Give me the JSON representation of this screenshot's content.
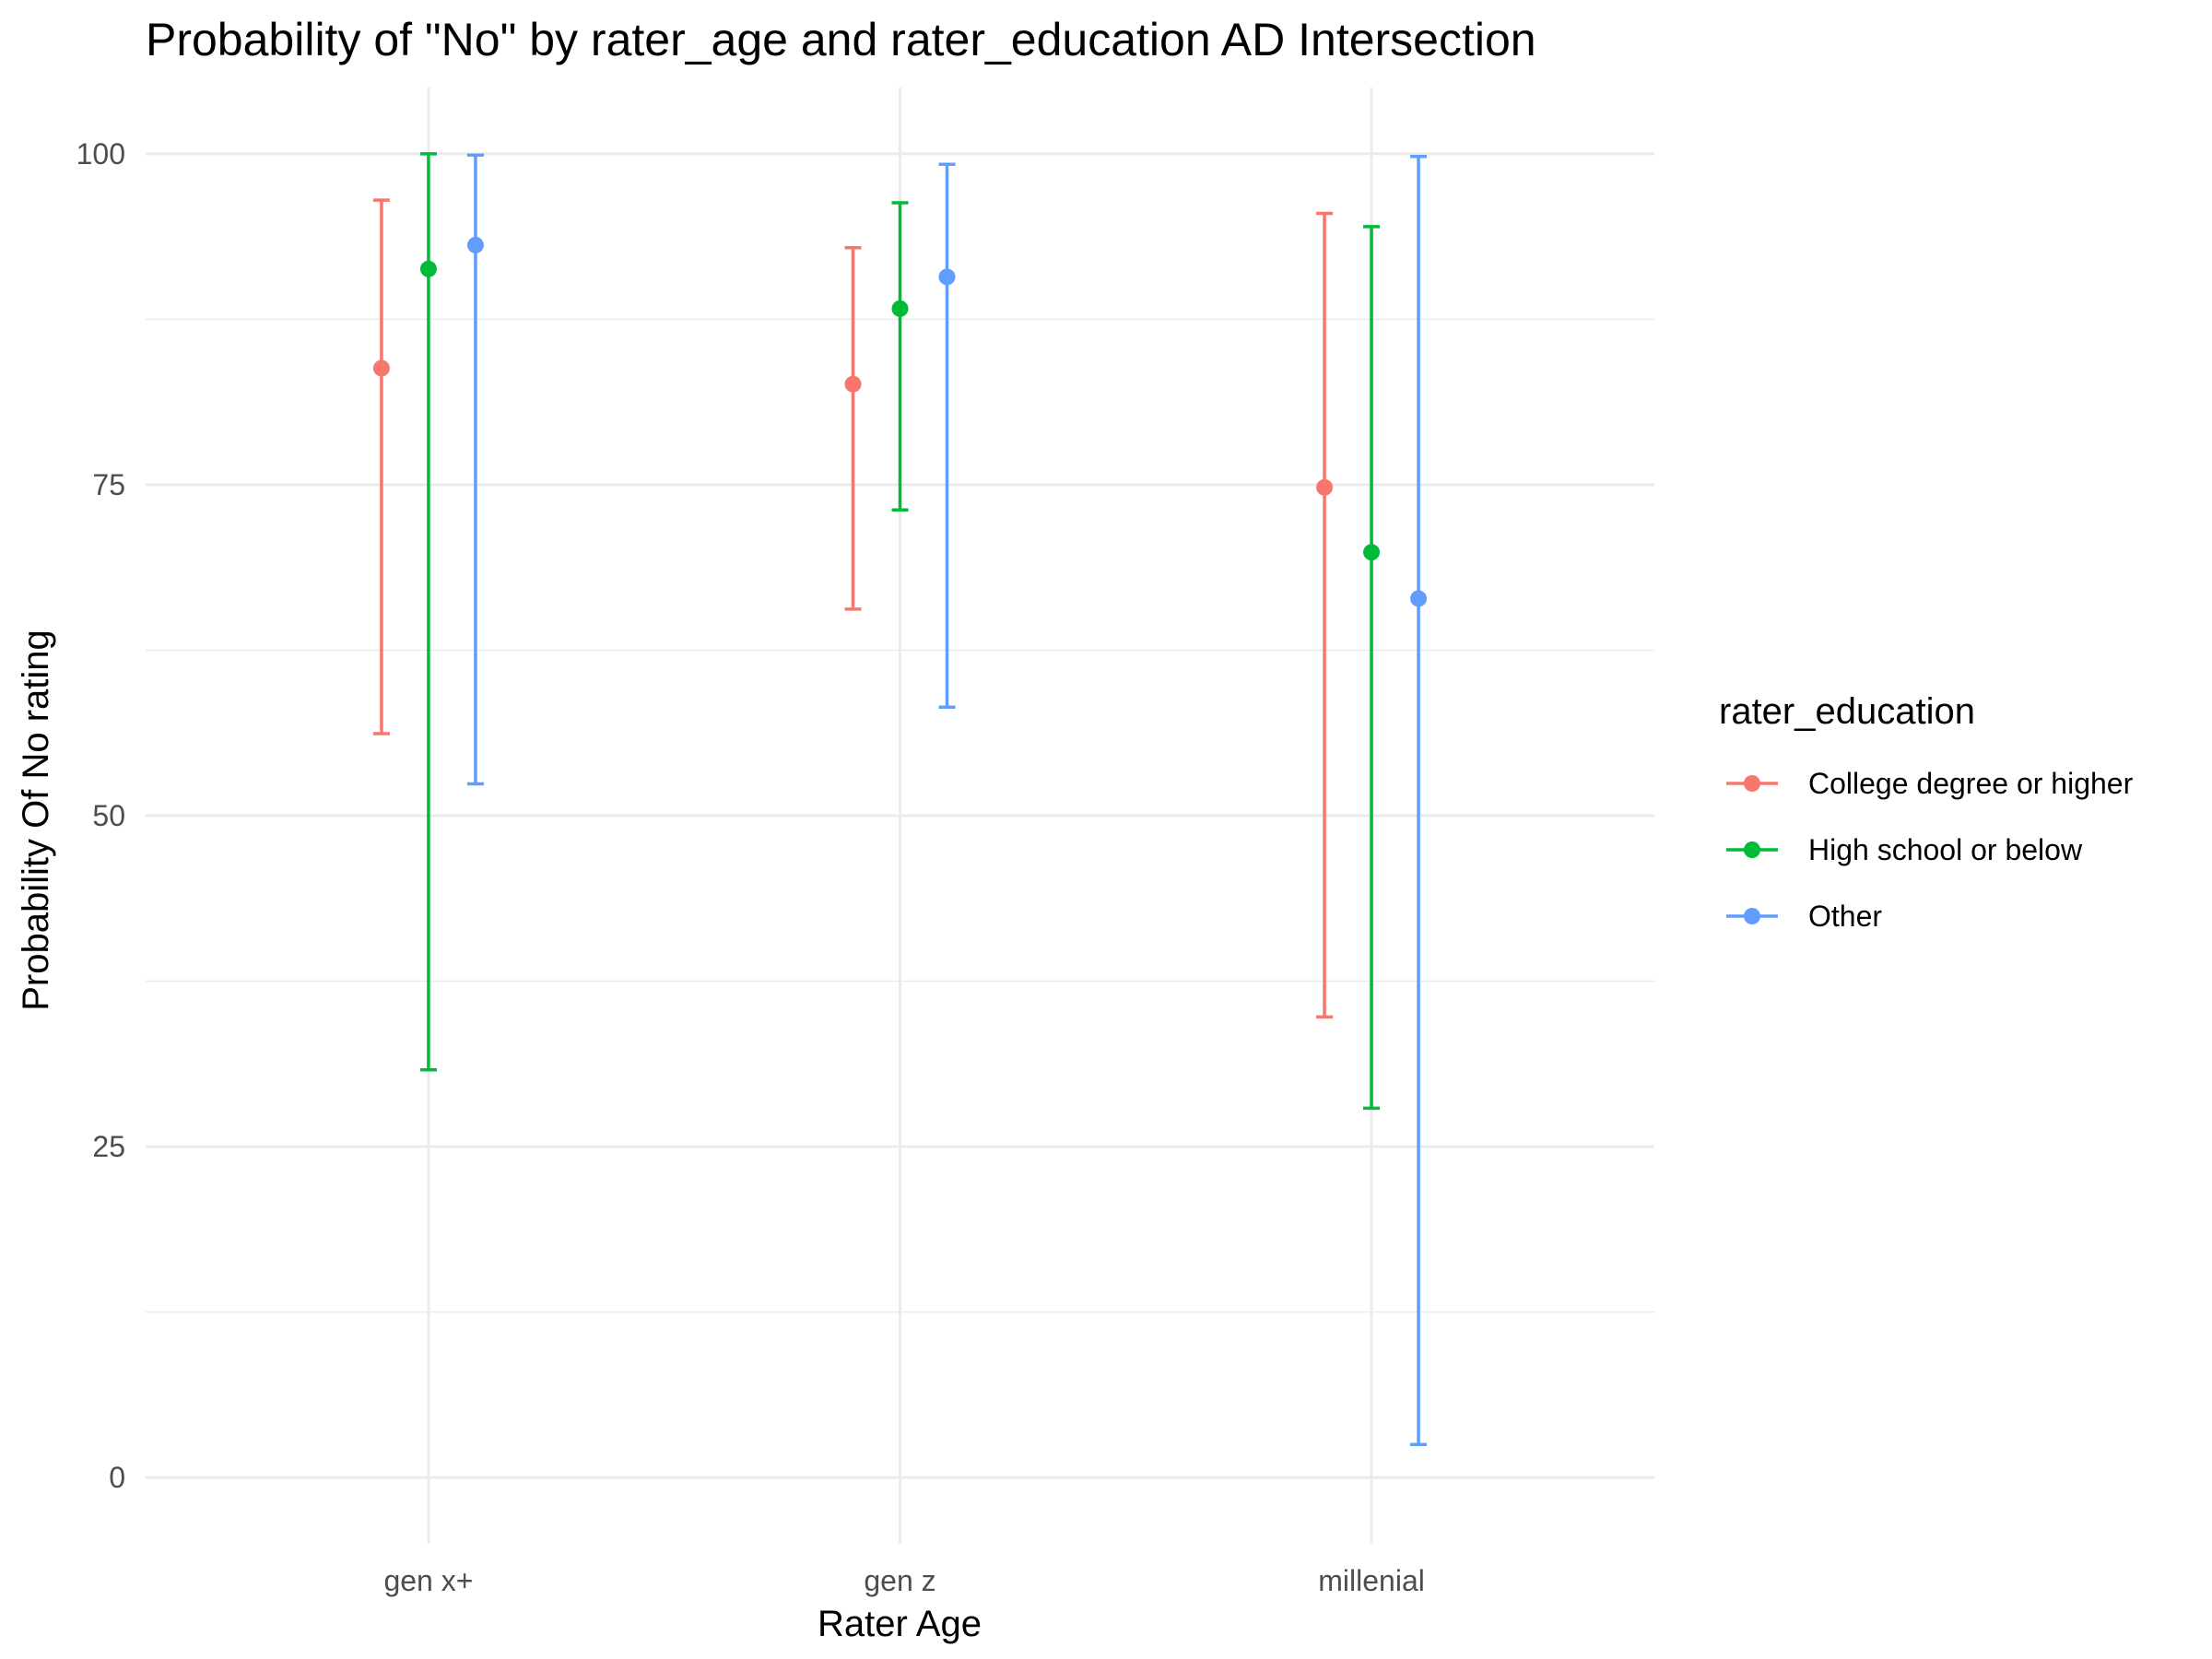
{
  "chart_data": {
    "type": "scatter",
    "title": "Probability of \"No\" by rater_age and  rater_education  AD Intersection",
    "xlabel": "Rater Age",
    "ylabel": "Probability Of No rating",
    "categories": [
      "gen x+",
      "gen z",
      "millenial"
    ],
    "ylim": [
      -5,
      105
    ],
    "yticks": [
      0,
      25,
      50,
      75,
      100
    ],
    "grid": true,
    "legend": {
      "title": "rater_education",
      "position": "right"
    },
    "series": [
      {
        "name": "College degree or higher",
        "color": "#F8766D",
        "values": [
          83.8,
          82.6,
          74.8
        ],
        "lower": [
          56.2,
          65.6,
          34.8
        ],
        "upper": [
          96.5,
          92.9,
          95.5
        ]
      },
      {
        "name": "High school or below",
        "color": "#00BA38",
        "values": [
          91.3,
          88.3,
          69.9
        ],
        "lower": [
          30.8,
          73.1,
          27.9
        ],
        "upper": [
          100,
          96.3,
          94.5
        ]
      },
      {
        "name": "Other",
        "color": "#619CFF",
        "values": [
          93.1,
          90.7,
          66.4
        ],
        "lower": [
          52.4,
          58.2,
          2.5
        ],
        "upper": [
          99.9,
          99.2,
          99.8
        ]
      }
    ]
  }
}
